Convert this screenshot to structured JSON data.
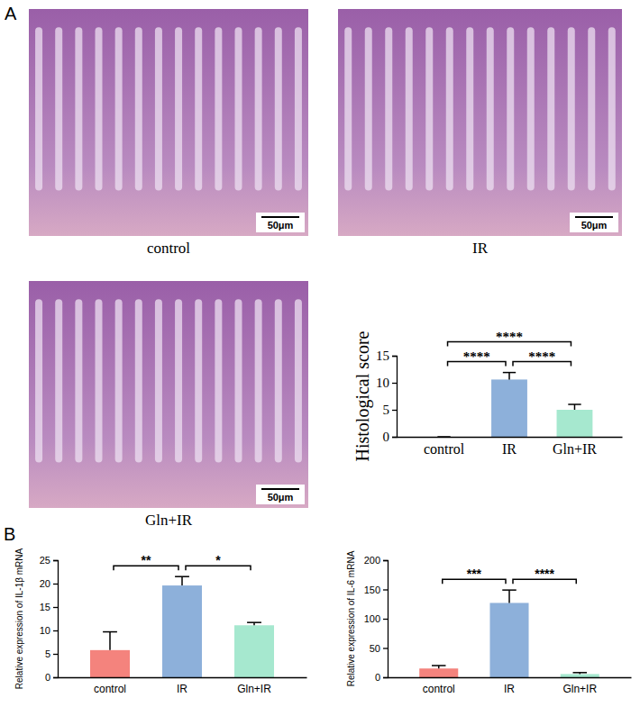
{
  "figure": {
    "panel_labels": [
      "A",
      "B"
    ],
    "images": [
      {
        "caption": "control",
        "scale_bar": "50μm"
      },
      {
        "caption": "IR",
        "scale_bar": "50μm"
      },
      {
        "caption": "Gln+IR",
        "scale_bar": "50μm"
      }
    ]
  },
  "chart_data": [
    {
      "type": "bar",
      "y_label": "Histological score",
      "categories": [
        "control",
        "IR",
        "Gln+IR"
      ],
      "values": [
        0,
        10.6,
        5.0
      ],
      "errors": [
        0,
        1.3,
        1.0
      ],
      "colors": [
        "#f4837d",
        "#8db0da",
        "#a6e8cf"
      ],
      "ylim": [
        0,
        15
      ],
      "yticks": [
        0,
        5,
        10,
        15
      ],
      "significance": [
        {
          "from": "control",
          "to": "IR",
          "label": "****"
        },
        {
          "from": "IR",
          "to": "Gln+IR",
          "label": "****"
        },
        {
          "from": "control",
          "to": "Gln+IR",
          "label": "****"
        }
      ]
    },
    {
      "type": "bar",
      "y_label": "Relative expression of IL-1β mRNA",
      "categories": [
        "control",
        "IR",
        "Gln+IR"
      ],
      "values": [
        5.8,
        19.6,
        11.1
      ],
      "errors": [
        3.9,
        1.9,
        0.6
      ],
      "colors": [
        "#f4837d",
        "#8db0da",
        "#a6e8cf"
      ],
      "ylim": [
        0,
        25
      ],
      "yticks": [
        0,
        5,
        10,
        15,
        20,
        25
      ],
      "significance": [
        {
          "from": "control",
          "to": "IR",
          "label": "**"
        },
        {
          "from": "IR",
          "to": "Gln+IR",
          "label": "*"
        }
      ]
    },
    {
      "type": "bar",
      "y_label": "Relative expression of IL-6 mRNA",
      "categories": [
        "control",
        "IR",
        "Gln+IR"
      ],
      "values": [
        15,
        127,
        5.5
      ],
      "errors": [
        5,
        22,
        2.5
      ],
      "colors": [
        "#f4837d",
        "#8db0da",
        "#a6e8cf"
      ],
      "ylim": [
        0,
        200
      ],
      "yticks": [
        0,
        50,
        100,
        150,
        200
      ],
      "significance": [
        {
          "from": "control",
          "to": "IR",
          "label": "***"
        },
        {
          "from": "IR",
          "to": "Gln+IR",
          "label": "****"
        }
      ]
    }
  ]
}
